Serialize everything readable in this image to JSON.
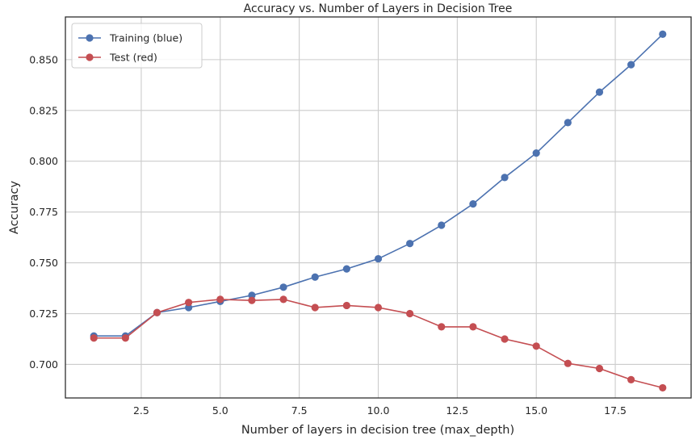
{
  "chart_data": {
    "type": "line",
    "title": "Accuracy vs. Number of Layers in Decision Tree",
    "xlabel": "Number of layers in decision tree (max_depth)",
    "ylabel": "Accuracy",
    "xlim": [
      0.1,
      19.9
    ],
    "ylim": [
      0.6835,
      0.871
    ],
    "xticks": [
      2.5,
      5.0,
      7.5,
      10.0,
      12.5,
      15.0,
      17.5
    ],
    "xtick_labels": [
      "2.5",
      "5.0",
      "7.5",
      "10.0",
      "12.5",
      "15.0",
      "17.5"
    ],
    "yticks": [
      0.7,
      0.725,
      0.75,
      0.775,
      0.8,
      0.825,
      0.85
    ],
    "ytick_labels": [
      "0.700",
      "0.725",
      "0.750",
      "0.775",
      "0.800",
      "0.825",
      "0.850"
    ],
    "grid": true,
    "legend_position": "top-left",
    "x": [
      1,
      2,
      3,
      4,
      5,
      6,
      7,
      8,
      9,
      10,
      11,
      12,
      13,
      14,
      15,
      16,
      17,
      18,
      19
    ],
    "series": [
      {
        "name": "Training (blue)",
        "color": "#4c72b0",
        "values": [
          0.714,
          0.714,
          0.7255,
          0.728,
          0.731,
          0.734,
          0.738,
          0.743,
          0.747,
          0.752,
          0.7595,
          0.7685,
          0.779,
          0.792,
          0.804,
          0.819,
          0.834,
          0.8475,
          0.8625
        ]
      },
      {
        "name": "Test (red)",
        "color": "#c44e52",
        "values": [
          0.713,
          0.713,
          0.7255,
          0.7305,
          0.732,
          0.7315,
          0.732,
          0.728,
          0.729,
          0.728,
          0.725,
          0.7185,
          0.7185,
          0.7125,
          0.709,
          0.7005,
          0.698,
          0.6925,
          0.6885
        ]
      }
    ]
  }
}
